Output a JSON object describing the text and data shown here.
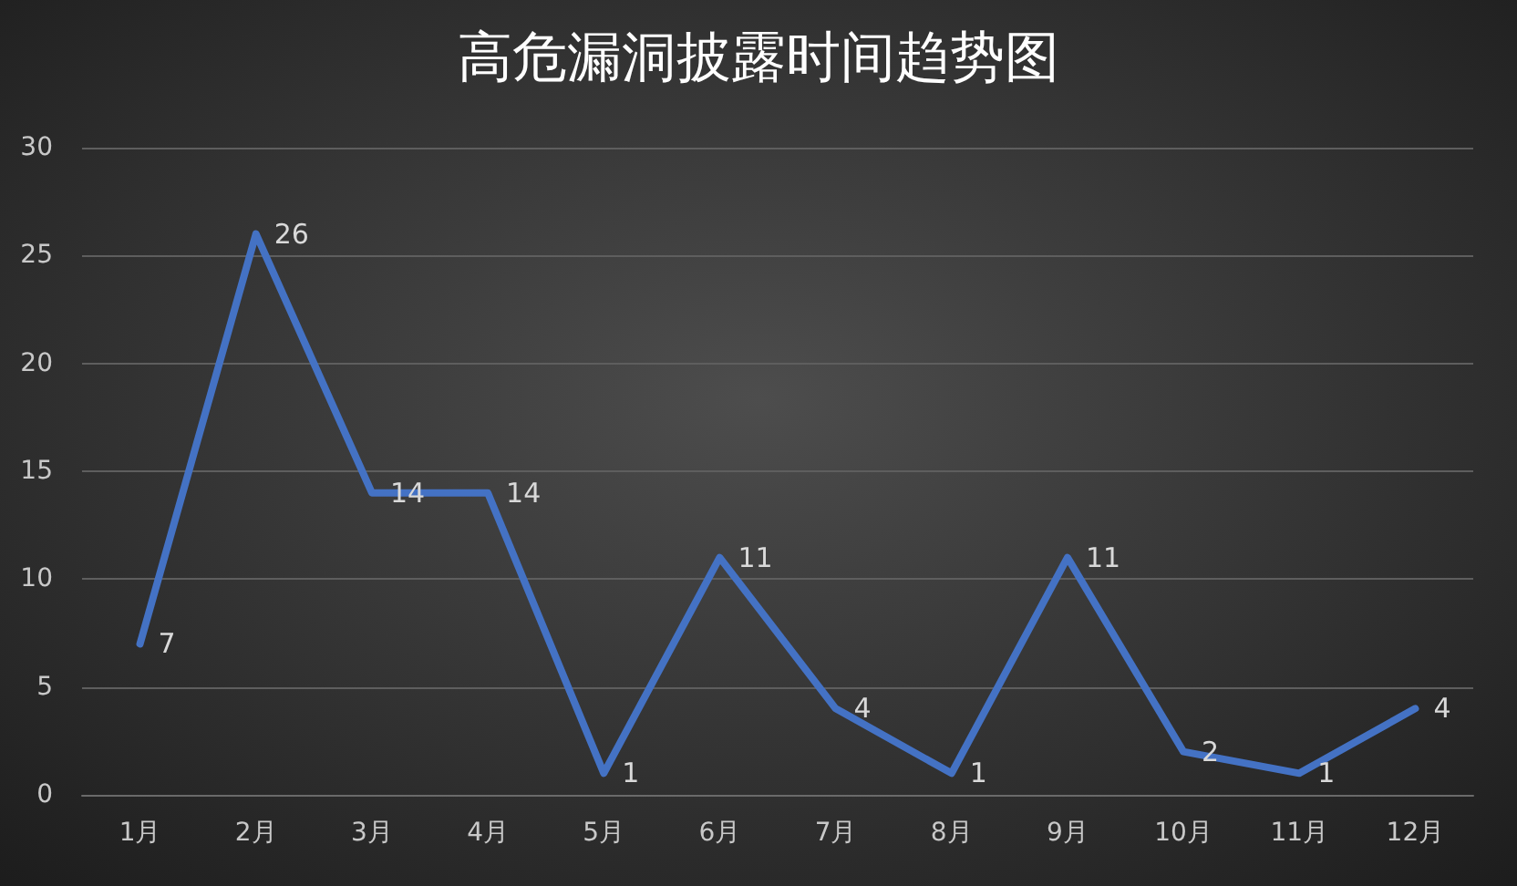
{
  "chart_data": {
    "type": "line",
    "title": "高危漏洞披露时间趋势图",
    "categories": [
      "1月",
      "2月",
      "3月",
      "4月",
      "5月",
      "6月",
      "7月",
      "8月",
      "9月",
      "10月",
      "11月",
      "12月"
    ],
    "series": [
      {
        "color": "#4472c4",
        "values": [
          7,
          26,
          14,
          14,
          1,
          11,
          4,
          1,
          11,
          2,
          1,
          4
        ]
      }
    ],
    "ylim": [
      0,
      30
    ],
    "yticks": [
      0,
      5,
      10,
      15,
      20,
      25,
      30
    ],
    "grid": "y",
    "data_labels": true,
    "marker": "none",
    "line_style": "solid"
  }
}
